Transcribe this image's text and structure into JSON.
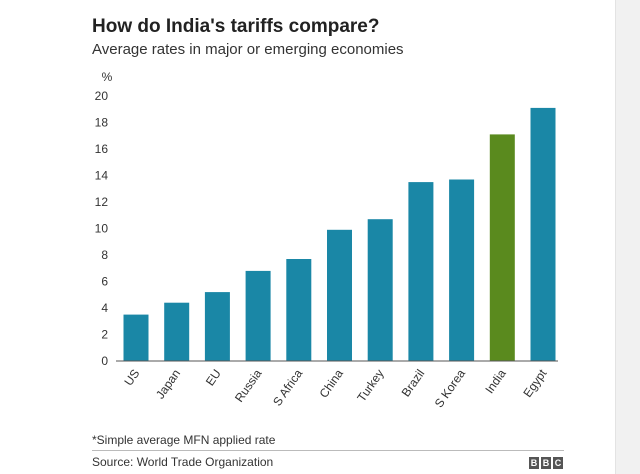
{
  "chart_data": {
    "type": "bar",
    "title": "How do India's tariffs compare?",
    "subtitle": "Average rates in major or emerging economies",
    "ylabel": "%",
    "xlabel": "",
    "ylim": [
      0,
      20
    ],
    "yticks": [
      0,
      2,
      4,
      6,
      8,
      10,
      12,
      14,
      16,
      18,
      20
    ],
    "grid": false,
    "categories": [
      "US",
      "Japan",
      "EU",
      "Russia",
      "S Africa",
      "China",
      "Turkey",
      "Brazil",
      "S Korea",
      "India",
      "Egypt"
    ],
    "values": [
      3.5,
      4.4,
      5.2,
      6.8,
      7.7,
      9.9,
      10.7,
      13.5,
      13.7,
      17.1,
      19.1
    ],
    "colors": {
      "default": "#1a87a6",
      "highlight": "#5a8a1e"
    },
    "highlight_category": "India",
    "footnote": "*Simple average MFN applied rate",
    "source": "Source: World Trade Organization",
    "logo_letters": [
      "B",
      "B",
      "C"
    ]
  }
}
